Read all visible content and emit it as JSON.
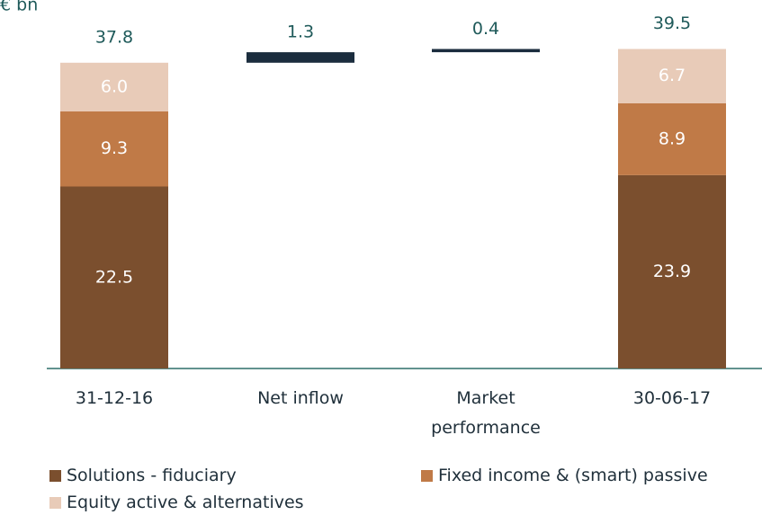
{
  "chart_data": {
    "type": "waterfall",
    "unit_label": "€ bn",
    "categories": [
      "31-12-16",
      "Net inflow",
      "Market performance",
      "30-06-17"
    ],
    "kinds": [
      "total",
      "delta",
      "delta",
      "total"
    ],
    "values": [
      37.8,
      1.3,
      0.4,
      39.5
    ],
    "delta_color": "#1b2d3e",
    "series": [
      {
        "name": "Solutions - fiduciary",
        "color": "#7b4f2e",
        "values": [
          22.5,
          null,
          null,
          23.9
        ]
      },
      {
        "name": "Fixed income & (smart) passive",
        "color": "#c07a47",
        "values": [
          9.3,
          null,
          null,
          8.9
        ]
      },
      {
        "name": "Equity active & alternatives",
        "color": "#e8cbb8",
        "values": [
          6.0,
          null,
          null,
          6.7
        ],
        "value_labels": [
          "6.0",
          null,
          null,
          "6.7"
        ]
      }
    ]
  }
}
